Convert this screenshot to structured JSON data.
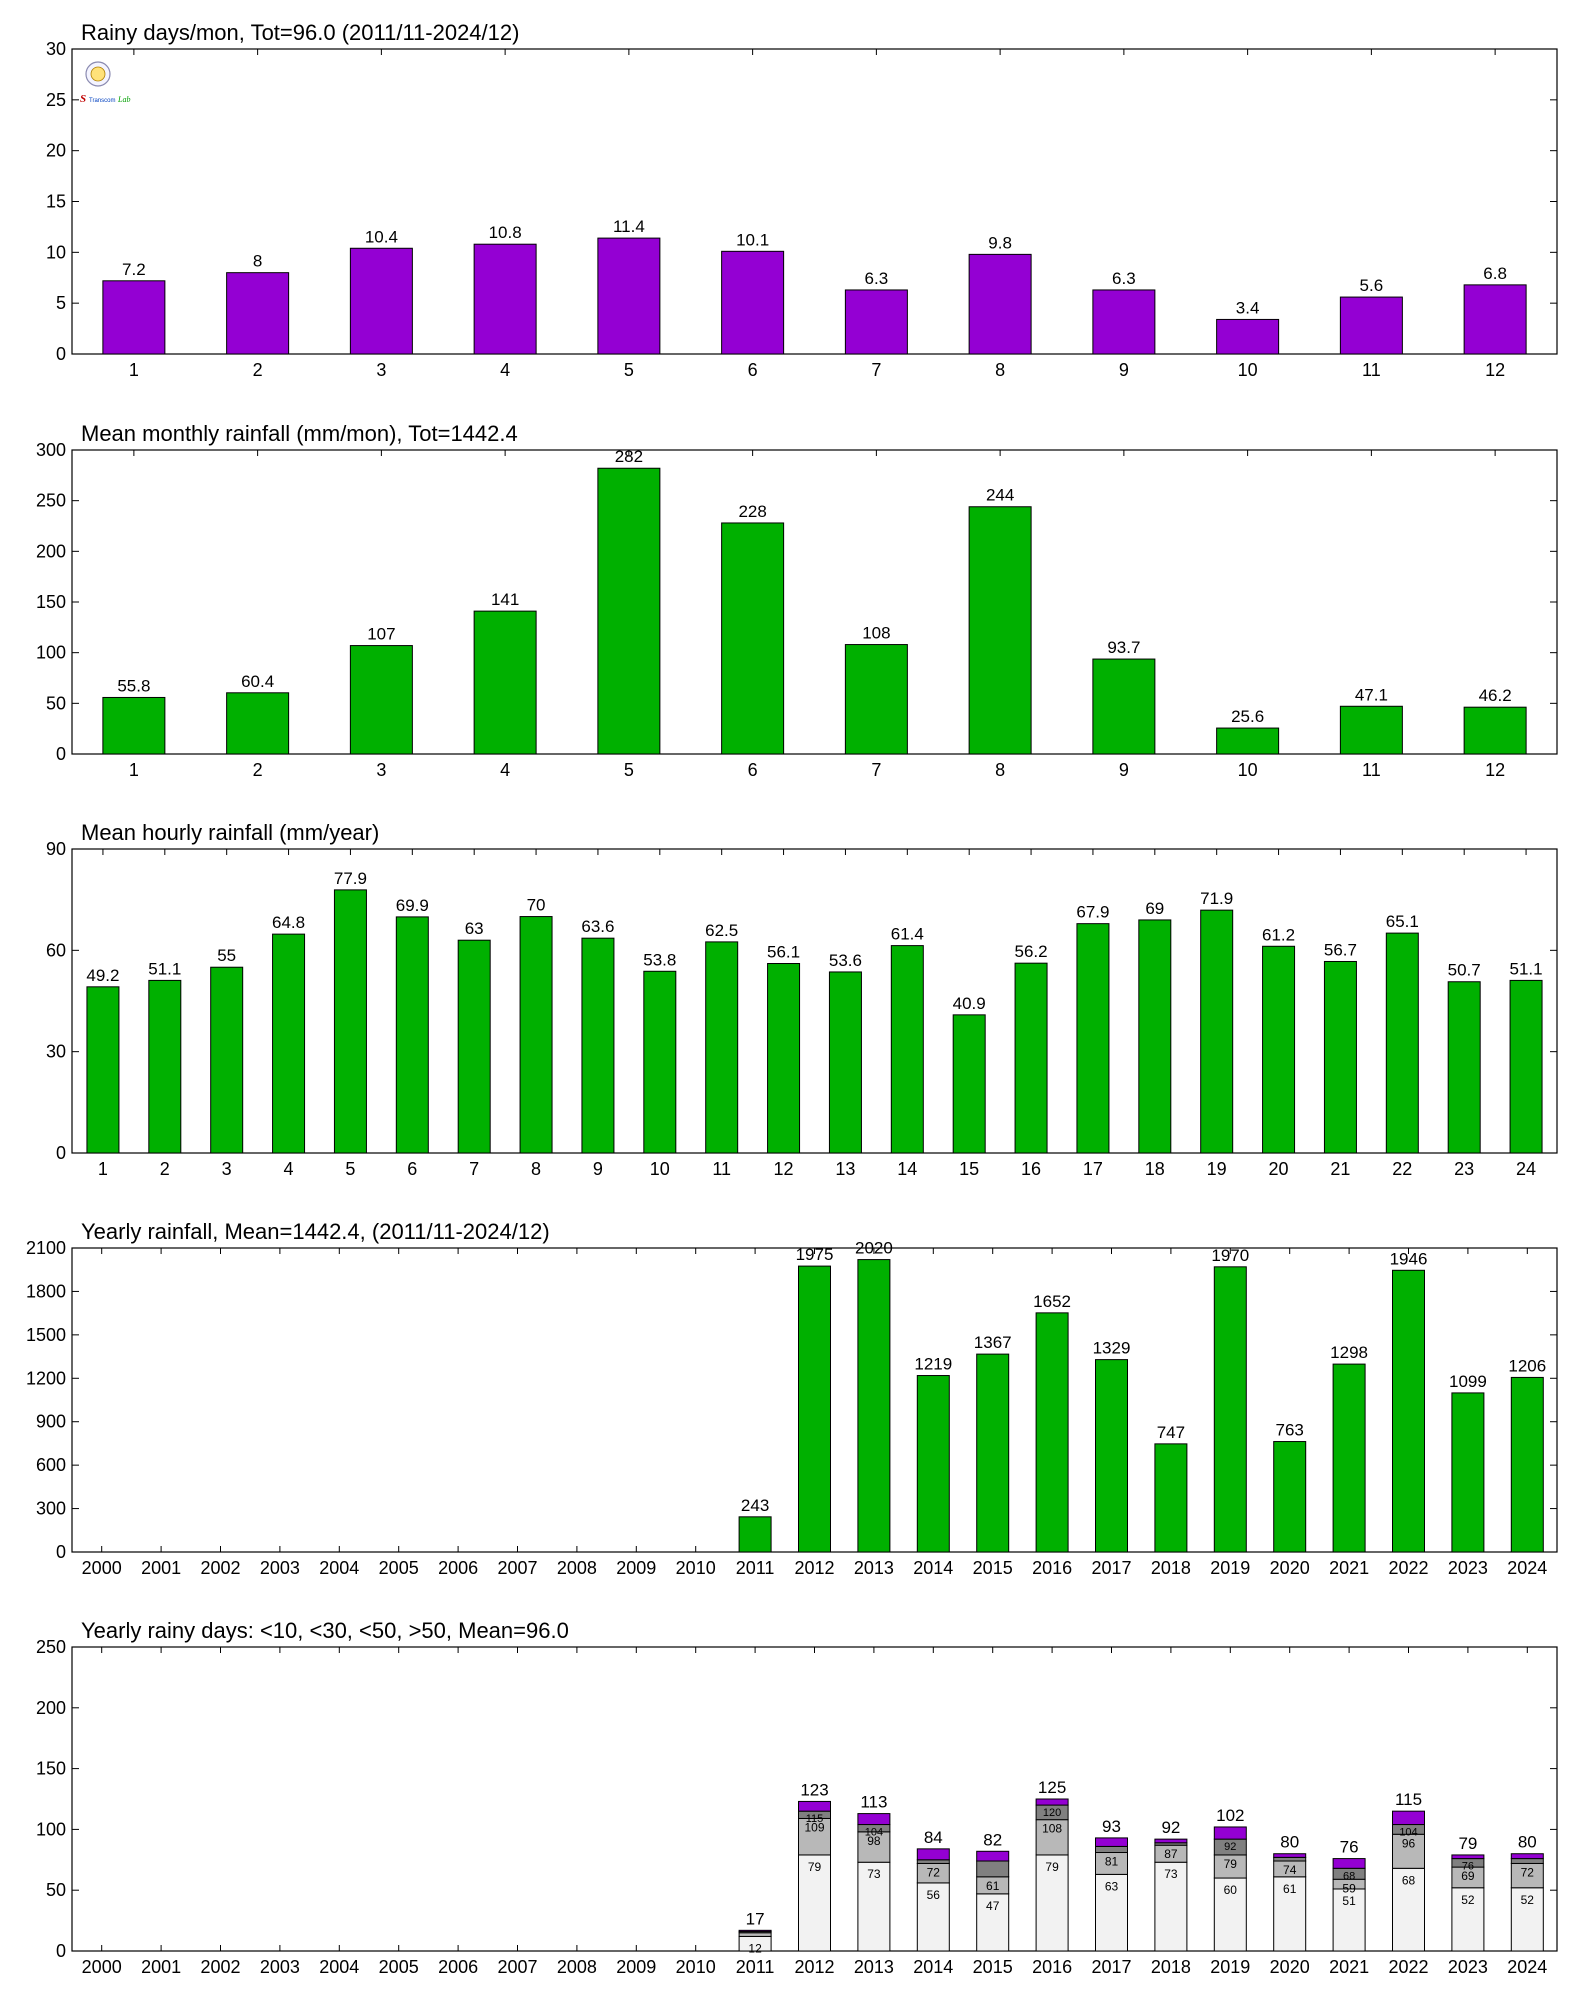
{
  "chart_data": [
    {
      "type": "bar",
      "title": "Rainy days/mon, Tot=96.0 (2011/11-2024/12)",
      "categories": [
        "1",
        "2",
        "3",
        "4",
        "5",
        "6",
        "7",
        "8",
        "9",
        "10",
        "11",
        "12"
      ],
      "values": [
        7.2,
        8,
        10.4,
        10.8,
        11.4,
        10.1,
        6.3,
        9.8,
        6.3,
        3.4,
        5.6,
        6.8
      ],
      "labels": [
        "7.2",
        "8",
        "10.4",
        "10.8",
        "11.4",
        "10.1",
        "6.3",
        "9.8",
        "6.3",
        "3.4",
        "5.6",
        "6.8"
      ],
      "yticks": [
        "0",
        "5",
        "10",
        "15",
        "20",
        "25",
        "30"
      ],
      "ylim": [
        0,
        30
      ],
      "color": "#9400d3",
      "grid": false
    },
    {
      "type": "bar",
      "title": "Mean monthly rainfall (mm/mon), Tot=1442.4",
      "categories": [
        "1",
        "2",
        "3",
        "4",
        "5",
        "6",
        "7",
        "8",
        "9",
        "10",
        "11",
        "12"
      ],
      "values": [
        55.8,
        60.4,
        107,
        141,
        282,
        228,
        108,
        244,
        93.7,
        25.6,
        47.1,
        46.2
      ],
      "labels": [
        "55.8",
        "60.4",
        "107",
        "141",
        "282",
        "228",
        "108",
        "244",
        "93.7",
        "25.6",
        "47.1",
        "46.2"
      ],
      "yticks": [
        "0",
        "50",
        "100",
        "150",
        "200",
        "250",
        "300"
      ],
      "ylim": [
        0,
        300
      ],
      "color": "#00b000",
      "grid": false
    },
    {
      "type": "bar",
      "title": "Mean hourly rainfall (mm/year)",
      "categories": [
        "1",
        "2",
        "3",
        "4",
        "5",
        "6",
        "7",
        "8",
        "9",
        "10",
        "11",
        "12",
        "13",
        "14",
        "15",
        "16",
        "17",
        "18",
        "19",
        "20",
        "21",
        "22",
        "23",
        "24"
      ],
      "values": [
        49.2,
        51.1,
        55,
        64.8,
        77.9,
        69.9,
        63,
        70,
        63.6,
        53.8,
        62.5,
        56.1,
        53.6,
        61.4,
        40.9,
        56.2,
        67.9,
        69,
        71.9,
        61.2,
        56.7,
        65.1,
        50.7,
        51.1
      ],
      "labels": [
        "49.2",
        "51.1",
        "55",
        "64.8",
        "77.9",
        "69.9",
        "63",
        "70",
        "63.6",
        "53.8",
        "62.5",
        "56.1",
        "53.6",
        "61.4",
        "40.9",
        "56.2",
        "67.9",
        "69",
        "71.9",
        "61.2",
        "56.7",
        "65.1",
        "50.7",
        "51.1"
      ],
      "yticks": [
        "0",
        "30",
        "60",
        "90"
      ],
      "ylim": [
        0,
        90
      ],
      "color": "#00b000",
      "grid": false
    },
    {
      "type": "bar",
      "title": "Yearly rainfall, Mean=1442.4, (2011/11-2024/12)",
      "categories": [
        "2000",
        "2001",
        "2002",
        "2003",
        "2004",
        "2005",
        "2006",
        "2007",
        "2008",
        "2009",
        "2010",
        "2011",
        "2012",
        "2013",
        "2014",
        "2015",
        "2016",
        "2017",
        "2018",
        "2019",
        "2020",
        "2021",
        "2022",
        "2023",
        "2024"
      ],
      "values": [
        null,
        null,
        null,
        null,
        null,
        null,
        null,
        null,
        null,
        null,
        null,
        243,
        1975,
        2020,
        1219,
        1367,
        1652,
        1329,
        747,
        1970,
        763,
        1298,
        1946,
        1099,
        1206
      ],
      "labels": [
        "",
        "",
        "",
        "",
        "",
        "",
        "",
        "",
        "",
        "",
        "",
        "243",
        "1975",
        "2020",
        "1219",
        "1367",
        "1652",
        "1329",
        "747",
        "1970",
        "763",
        "1298",
        "1946",
        "1099",
        "1206"
      ],
      "yticks": [
        "0",
        "300",
        "600",
        "900",
        "1200",
        "1500",
        "1800",
        "2100"
      ],
      "ylim": [
        0,
        2100
      ],
      "color": "#00b000",
      "grid": false
    },
    {
      "type": "bar",
      "stacked": true,
      "title": "Yearly rainy days: <10, <30, <50, >50, Mean=96.0",
      "categories": [
        "2000",
        "2001",
        "2002",
        "2003",
        "2004",
        "2005",
        "2006",
        "2007",
        "2008",
        "2009",
        "2010",
        "2011",
        "2012",
        "2013",
        "2014",
        "2015",
        "2016",
        "2017",
        "2018",
        "2019",
        "2020",
        "2021",
        "2022",
        "2023",
        "2024"
      ],
      "cumulative": {
        "lt10": [
          null,
          null,
          null,
          null,
          null,
          null,
          null,
          null,
          null,
          null,
          null,
          12,
          79,
          73,
          56,
          47,
          79,
          63,
          73,
          60,
          61,
          51,
          68,
          52,
          52
        ],
        "lt30": [
          null,
          null,
          null,
          null,
          null,
          null,
          null,
          null,
          null,
          null,
          null,
          15,
          109,
          98,
          72,
          61,
          108,
          81,
          87,
          79,
          74,
          59,
          96,
          69,
          72
        ],
        "lt50": [
          null,
          null,
          null,
          null,
          null,
          null,
          null,
          null,
          null,
          null,
          null,
          16,
          115,
          104,
          75,
          74,
          120,
          86,
          89,
          92,
          77,
          68,
          104,
          76,
          76
        ],
        "total": [
          null,
          null,
          null,
          null,
          null,
          null,
          null,
          null,
          null,
          null,
          null,
          17,
          123,
          113,
          84,
          82,
          125,
          93,
          92,
          102,
          80,
          76,
          115,
          79,
          80
        ]
      },
      "labels_lt10": [
        "",
        "",
        "",
        "",
        "",
        "",
        "",
        "",
        "",
        "",
        "",
        "12",
        "79",
        "73",
        "56",
        "47",
        "79",
        "63",
        "73",
        "60",
        "61",
        "51",
        "68",
        "52",
        "52"
      ],
      "labels_lt30": [
        "",
        "",
        "",
        "",
        "",
        "",
        "",
        "",
        "",
        "",
        "",
        "",
        "109",
        "98",
        "72",
        "61",
        "108",
        "81",
        "87",
        "79",
        "74",
        "59",
        "96",
        "69",
        "72"
      ],
      "labels_lt50": [
        "",
        "",
        "",
        "",
        "",
        "",
        "",
        "",
        "",
        "",
        "",
        "",
        "115",
        "104",
        "",
        "",
        "120",
        "",
        "",
        "92",
        "",
        "68",
        "104",
        "76",
        ""
      ],
      "labels_total": [
        "",
        "",
        "",
        "",
        "",
        "",
        "",
        "",
        "",
        "",
        "",
        "17",
        "123",
        "113",
        "84",
        "82",
        "125",
        "93",
        "92",
        "102",
        "80",
        "76",
        "115",
        "79",
        "80"
      ],
      "yticks": [
        "0",
        "50",
        "100",
        "150",
        "200",
        "250"
      ],
      "ylim": [
        0,
        250
      ],
      "colors": {
        "lt10": "#f2f2f2",
        "lt30": "#b8b8b8",
        "lt50": "#808080",
        "gt50": "#9400d3"
      },
      "grid": false
    }
  ],
  "logo": {
    "text_left": "S",
    "text_mid": "Transcom",
    "text_right": "Lab"
  }
}
